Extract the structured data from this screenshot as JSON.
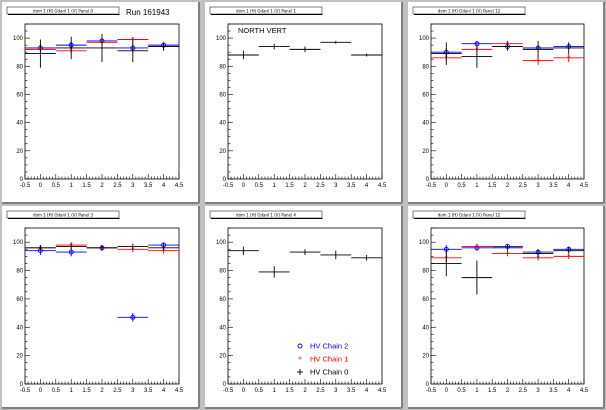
{
  "run_label": "Run 161943",
  "colors": {
    "chain2": "#0000ff",
    "chain1": "#ff0000",
    "chain0": "#000000",
    "pad_bg": "#ffffff",
    "canvas_bg": "#c0c0c0"
  },
  "chart_data": [
    {
      "type": "scatter",
      "title": "dom 1 (H) Gdanl 1 (V) Panel 0",
      "annotation": "",
      "xlim": [
        -0.5,
        4.5
      ],
      "ylim": [
        0,
        110
      ],
      "x_ticks": [
        "-0.5",
        "0",
        "0.5",
        "1",
        "1.5",
        "2",
        "2.5",
        "3",
        "3.5",
        "4",
        "4.5"
      ],
      "y_ticks": [
        "0",
        "20",
        "40",
        "60",
        "80",
        "100"
      ],
      "series": [
        {
          "name": "HV Chain 2",
          "marker": "circle",
          "points": [
            {
              "x": 0,
              "y": 93,
              "xerr": 0.5,
              "yerr": 3
            },
            {
              "x": 1,
              "y": 95,
              "xerr": 0.5,
              "yerr": 3
            },
            {
              "x": 2,
              "y": 98,
              "xerr": 0.5,
              "yerr": 2
            },
            {
              "x": 3,
              "y": 93,
              "xerr": 0.5,
              "yerr": 3
            },
            {
              "x": 4,
              "y": 95,
              "xerr": 0.5,
              "yerr": 2
            }
          ]
        },
        {
          "name": "HV Chain 1",
          "marker": "star",
          "points": [
            {
              "x": 0,
              "y": 92,
              "xerr": 0.5,
              "yerr": 2
            },
            {
              "x": 1,
              "y": 91,
              "xerr": 0.5,
              "yerr": 2
            },
            {
              "x": 2,
              "y": 97,
              "xerr": 0.5,
              "yerr": 2
            },
            {
              "x": 3,
              "y": 99,
              "xerr": 0.5,
              "yerr": 2
            },
            {
              "x": 4,
              "y": 94,
              "xerr": 0.5,
              "yerr": 2
            }
          ]
        },
        {
          "name": "HV Chain 0",
          "marker": "cross",
          "points": [
            {
              "x": 0,
              "y": 89,
              "xerr": 0.5,
              "yerr": 10
            },
            {
              "x": 1,
              "y": 93,
              "xerr": 0.5,
              "yerr": 8
            },
            {
              "x": 2,
              "y": 93,
              "xerr": 0.5,
              "yerr": 10
            },
            {
              "x": 3,
              "y": 91,
              "xerr": 0.5,
              "yerr": 8
            },
            {
              "x": 4,
              "y": 94,
              "xerr": 0.5,
              "yerr": 3
            }
          ]
        }
      ]
    },
    {
      "type": "scatter",
      "title": "dom 1 (H) Gdanl 1 (V) Panel 1",
      "annotation": "NORTH VERT",
      "xlim": [
        -0.5,
        4.5
      ],
      "ylim": [
        0,
        110
      ],
      "x_ticks": [
        "-0.5",
        "0",
        "0.5",
        "1",
        "1.5",
        "2",
        "2.5",
        "3",
        "3.5",
        "4",
        "4.5"
      ],
      "y_ticks": [
        "0",
        "20",
        "40",
        "60",
        "80",
        "100"
      ],
      "series": [
        {
          "name": "HV Chain 0",
          "marker": "cross",
          "points": [
            {
              "x": 0,
              "y": 88,
              "xerr": 0.5,
              "yerr": 3
            },
            {
              "x": 1,
              "y": 94,
              "xerr": 0.5,
              "yerr": 2
            },
            {
              "x": 2,
              "y": 92,
              "xerr": 0.5,
              "yerr": 2
            },
            {
              "x": 3,
              "y": 97,
              "xerr": 0.5,
              "yerr": 1
            },
            {
              "x": 4,
              "y": 88,
              "xerr": 0.5,
              "yerr": 1
            }
          ]
        }
      ]
    },
    {
      "type": "scatter",
      "title": "dom 1 (H) Gdanl 1 (V) Panel 12",
      "annotation": "",
      "xlim": [
        -0.5,
        4.5
      ],
      "ylim": [
        0,
        110
      ],
      "x_ticks": [
        "-0.5",
        "0",
        "0.5",
        "1",
        "1.5",
        "2",
        "2.5",
        "3",
        "3.5",
        "4",
        "4.5"
      ],
      "y_ticks": [
        "0",
        "20",
        "40",
        "60",
        "80",
        "100"
      ],
      "series": [
        {
          "name": "HV Chain 2",
          "marker": "circle",
          "points": [
            {
              "x": 0,
              "y": 90,
              "xerr": 0.5,
              "yerr": 3
            },
            {
              "x": 1,
              "y": 96,
              "xerr": 0.5,
              "yerr": 2
            },
            {
              "x": 2,
              "y": 94,
              "xerr": 0.5,
              "yerr": 2
            },
            {
              "x": 3,
              "y": 93,
              "xerr": 0.5,
              "yerr": 2
            },
            {
              "x": 4,
              "y": 94,
              "xerr": 0.5,
              "yerr": 2
            }
          ]
        },
        {
          "name": "HV Chain 1",
          "marker": "star",
          "points": [
            {
              "x": 0,
              "y": 86,
              "xerr": 0.5,
              "yerr": 3
            },
            {
              "x": 1,
              "y": 92,
              "xerr": 0.5,
              "yerr": 3
            },
            {
              "x": 2,
              "y": 96,
              "xerr": 0.5,
              "yerr": 2
            },
            {
              "x": 3,
              "y": 84,
              "xerr": 0.5,
              "yerr": 3
            },
            {
              "x": 4,
              "y": 86,
              "xerr": 0.5,
              "yerr": 3
            }
          ]
        },
        {
          "name": "HV Chain 0",
          "marker": "cross",
          "points": [
            {
              "x": 0,
              "y": 89,
              "xerr": 0.5,
              "yerr": 8
            },
            {
              "x": 1,
              "y": 87,
              "xerr": 0.5,
              "yerr": 8
            },
            {
              "x": 2,
              "y": 94,
              "xerr": 0.5,
              "yerr": 3
            },
            {
              "x": 3,
              "y": 92,
              "xerr": 0.5,
              "yerr": 6
            },
            {
              "x": 4,
              "y": 93,
              "xerr": 0.5,
              "yerr": 4
            }
          ]
        }
      ]
    },
    {
      "type": "scatter",
      "title": "dom 1 (H) Gdanl 1 (V) Panel 3",
      "annotation": "",
      "xlim": [
        -0.5,
        4.5
      ],
      "ylim": [
        0,
        110
      ],
      "x_ticks": [
        "-0.5",
        "0",
        "0.5",
        "1",
        "1.5",
        "2",
        "2.5",
        "3",
        "3.5",
        "4",
        "4.5"
      ],
      "y_ticks": [
        "0",
        "20",
        "40",
        "60",
        "80",
        "100"
      ],
      "series": [
        {
          "name": "HV Chain 2",
          "marker": "circle",
          "points": [
            {
              "x": 0,
              "y": 94,
              "xerr": 0.5,
              "yerr": 3
            },
            {
              "x": 1,
              "y": 93,
              "xerr": 0.5,
              "yerr": 3
            },
            {
              "x": 2,
              "y": 96,
              "xerr": 0.5,
              "yerr": 2
            },
            {
              "x": 3,
              "y": 47,
              "xerr": 0.5,
              "yerr": 3
            },
            {
              "x": 4,
              "y": 98,
              "xerr": 0.5,
              "yerr": 2
            }
          ]
        },
        {
          "name": "HV Chain 1",
          "marker": "star",
          "points": [
            {
              "x": 0,
              "y": 96,
              "xerr": 0.5,
              "yerr": 2
            },
            {
              "x": 1,
              "y": 98,
              "xerr": 0.5,
              "yerr": 2
            },
            {
              "x": 2,
              "y": 96,
              "xerr": 0.5,
              "yerr": 2
            },
            {
              "x": 3,
              "y": 95,
              "xerr": 0.5,
              "yerr": 2
            },
            {
              "x": 4,
              "y": 94,
              "xerr": 0.5,
              "yerr": 2
            }
          ]
        },
        {
          "name": "HV Chain 0",
          "marker": "cross",
          "points": [
            {
              "x": 0,
              "y": 96,
              "xerr": 0.5,
              "yerr": 2
            },
            {
              "x": 1,
              "y": 97,
              "xerr": 0.5,
              "yerr": 2
            },
            {
              "x": 2,
              "y": 96,
              "xerr": 0.5,
              "yerr": 2
            },
            {
              "x": 3,
              "y": 97,
              "xerr": 0.5,
              "yerr": 2
            },
            {
              "x": 4,
              "y": 96,
              "xerr": 0.5,
              "yerr": 2
            }
          ]
        }
      ]
    },
    {
      "type": "scatter",
      "title": "dom 1 (H) Gdanl 1 (V) Panel 4",
      "annotation": "",
      "xlim": [
        -0.5,
        4.5
      ],
      "ylim": [
        0,
        110
      ],
      "x_ticks": [
        "-0.5",
        "0",
        "0.5",
        "1",
        "1.5",
        "2",
        "2.5",
        "3",
        "3.5",
        "4",
        "4.5"
      ],
      "y_ticks": [
        "0",
        "20",
        "40",
        "60",
        "80",
        "100"
      ],
      "legend": {
        "placement": "bottom-right",
        "entries": [
          {
            "label": "HV Chain 2",
            "marker": "circle",
            "color": "#0000ff"
          },
          {
            "label": "HV Chain 1",
            "marker": "star",
            "color": "#ff0000"
          },
          {
            "label": "HV Chain 0",
            "marker": "cross",
            "color": "#000000"
          }
        ]
      },
      "series": [
        {
          "name": "HV Chain 0",
          "marker": "cross",
          "points": [
            {
              "x": 0,
              "y": 94,
              "xerr": 0.5,
              "yerr": 3
            },
            {
              "x": 1,
              "y": 79,
              "xerr": 0.5,
              "yerr": 4
            },
            {
              "x": 2,
              "y": 93,
              "xerr": 0.5,
              "yerr": 2
            },
            {
              "x": 3,
              "y": 91,
              "xerr": 0.5,
              "yerr": 3
            },
            {
              "x": 4,
              "y": 89,
              "xerr": 0.5,
              "yerr": 2
            }
          ]
        }
      ]
    },
    {
      "type": "scatter",
      "title": "dom 1 (H) Gdanl 1 (V) Panel 12",
      "annotation": "",
      "xlim": [
        -0.5,
        4.5
      ],
      "ylim": [
        0,
        110
      ],
      "x_ticks": [
        "-0.5",
        "0",
        "0.5",
        "1",
        "1.5",
        "2",
        "2.5",
        "3",
        "3.5",
        "4",
        "4.5"
      ],
      "y_ticks": [
        "0",
        "20",
        "40",
        "60",
        "80",
        "100"
      ],
      "series": [
        {
          "name": "HV Chain 2",
          "marker": "circle",
          "points": [
            {
              "x": 0,
              "y": 95,
              "xerr": 0.5,
              "yerr": 3
            },
            {
              "x": 1,
              "y": 96,
              "xerr": 0.5,
              "yerr": 2
            },
            {
              "x": 2,
              "y": 97,
              "xerr": 0.5,
              "yerr": 2
            },
            {
              "x": 3,
              "y": 93,
              "xerr": 0.5,
              "yerr": 2
            },
            {
              "x": 4,
              "y": 95,
              "xerr": 0.5,
              "yerr": 2
            }
          ]
        },
        {
          "name": "HV Chain 1",
          "marker": "star",
          "points": [
            {
              "x": 0,
              "y": 89,
              "xerr": 0.5,
              "yerr": 3
            },
            {
              "x": 1,
              "y": 97,
              "xerr": 0.5,
              "yerr": 2
            },
            {
              "x": 2,
              "y": 92,
              "xerr": 0.5,
              "yerr": 2
            },
            {
              "x": 3,
              "y": 89,
              "xerr": 0.5,
              "yerr": 2
            },
            {
              "x": 4,
              "y": 90,
              "xerr": 0.5,
              "yerr": 2
            }
          ]
        },
        {
          "name": "HV Chain 0",
          "marker": "cross",
          "points": [
            {
              "x": 0,
              "y": 85,
              "xerr": 0.5,
              "yerr": 9
            },
            {
              "x": 1,
              "y": 75,
              "xerr": 0.5,
              "yerr": 12
            },
            {
              "x": 2,
              "y": 96,
              "xerr": 0.5,
              "yerr": 2
            },
            {
              "x": 3,
              "y": 92,
              "xerr": 0.5,
              "yerr": 3
            },
            {
              "x": 4,
              "y": 94,
              "xerr": 0.5,
              "yerr": 2
            }
          ]
        }
      ]
    }
  ]
}
